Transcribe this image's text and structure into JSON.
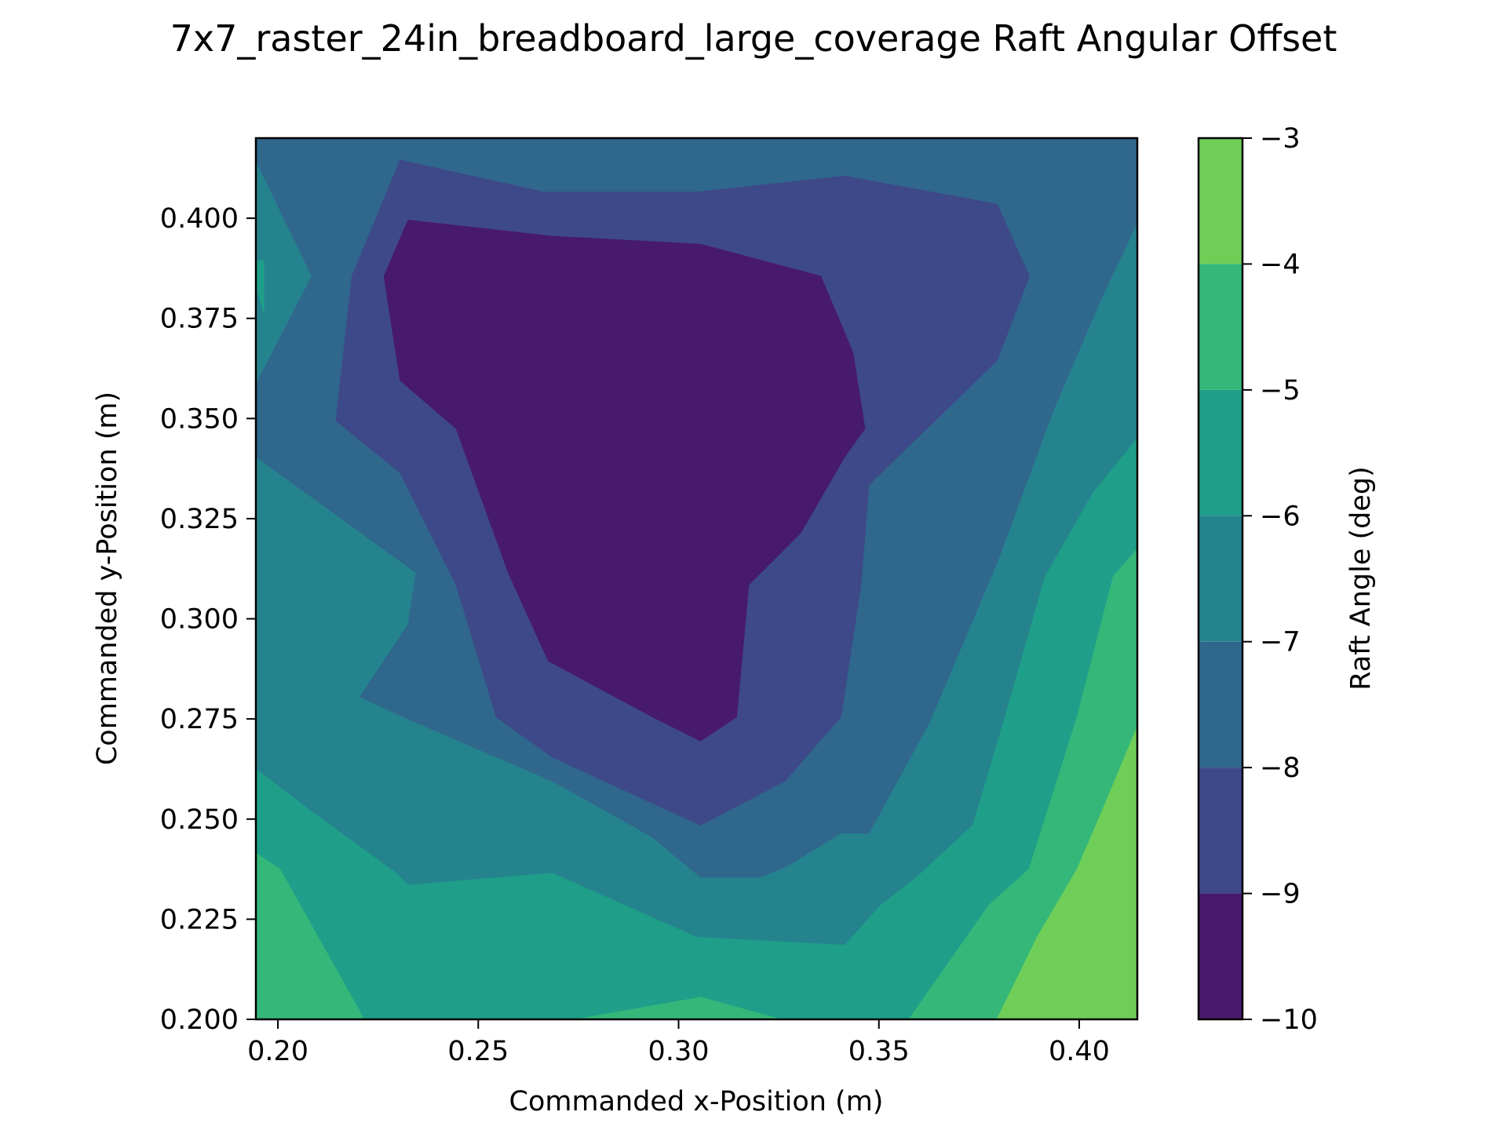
{
  "chart_data": {
    "type": "contourf",
    "title": "7x7_raster_24in_breadboard_large_coverage Raft Angular Offset",
    "xlabel": "Commanded x-Position (m)",
    "ylabel": "Commanded y-Position (m)",
    "colorbar_label": "Raft Angle (deg)",
    "xlim": [
      0.1945,
      0.4145
    ],
    "ylim": [
      0.2,
      0.42
    ],
    "xticks": [
      "0.20",
      "0.25",
      "0.30",
      "0.35",
      "0.40"
    ],
    "yticks": [
      "0.200",
      "0.225",
      "0.250",
      "0.275",
      "0.300",
      "0.325",
      "0.350",
      "0.375",
      "0.400"
    ],
    "colorbar_ticks": [
      "−10",
      "−9",
      "−8",
      "−7",
      "−6",
      "−5",
      "−4",
      "−3"
    ],
    "levels": [
      -10,
      -9,
      -8,
      -7,
      -6,
      -5,
      -4,
      -3
    ],
    "colors": [
      "#481a6c",
      "#3e4989",
      "#30678d",
      "#25838e",
      "#1f9e89",
      "#35b779",
      "#6ece58",
      "#d2e21b"
    ],
    "grid": false,
    "regions": [
      {
        "level_range": [
          -7,
          -6
        ],
        "points": [
          [
            0.1945,
            0.2
          ],
          [
            0.4145,
            0.2
          ],
          [
            0.4145,
            0.42
          ],
          [
            0.1945,
            0.42
          ]
        ]
      },
      {
        "level_range": [
          -8,
          -7
        ],
        "points": [
          [
            0.1945,
            0.42
          ],
          [
            0.4145,
            0.42
          ],
          [
            0.4145,
            0.399
          ],
          [
            0.4055,
            0.38
          ],
          [
            0.3935,
            0.352
          ],
          [
            0.3795,
            0.314
          ],
          [
            0.3625,
            0.274
          ],
          [
            0.3475,
            0.2465
          ],
          [
            0.3405,
            0.2465
          ],
          [
            0.3275,
            0.2385
          ],
          [
            0.3205,
            0.2355
          ],
          [
            0.3055,
            0.2355
          ],
          [
            0.2935,
            0.2455
          ],
          [
            0.2685,
            0.2595
          ],
          [
            0.2325,
            0.275
          ],
          [
            0.2205,
            0.2805
          ],
          [
            0.2325,
            0.2985
          ],
          [
            0.2345,
            0.3115
          ],
          [
            0.1945,
            0.3405
          ],
          [
            0.1945,
            0.3585
          ],
          [
            0.2085,
            0.3855
          ],
          [
            0.1945,
            0.4145
          ]
        ]
      },
      {
        "level_range": [
          -9,
          -8
        ],
        "points": [
          [
            0.2185,
            0.3855
          ],
          [
            0.2305,
            0.4145
          ],
          [
            0.2665,
            0.4065
          ],
          [
            0.3045,
            0.4065
          ],
          [
            0.3415,
            0.4105
          ],
          [
            0.3795,
            0.4035
          ],
          [
            0.3875,
            0.3855
          ],
          [
            0.3795,
            0.3645
          ],
          [
            0.3475,
            0.3335
          ],
          [
            0.3455,
            0.3085
          ],
          [
            0.3405,
            0.2755
          ],
          [
            0.3265,
            0.2595
          ],
          [
            0.3055,
            0.2485
          ],
          [
            0.2945,
            0.2535
          ],
          [
            0.2685,
            0.2655
          ],
          [
            0.2545,
            0.2755
          ],
          [
            0.2445,
            0.3085
          ],
          [
            0.2305,
            0.3365
          ],
          [
            0.2145,
            0.3495
          ]
        ]
      },
      {
        "level_range": [
          -10,
          -9
        ],
        "points": [
          [
            0.2265,
            0.3855
          ],
          [
            0.2325,
            0.3995
          ],
          [
            0.2685,
            0.3955
          ],
          [
            0.3055,
            0.3935
          ],
          [
            0.3355,
            0.3855
          ],
          [
            0.3435,
            0.3665
          ],
          [
            0.3465,
            0.3475
          ],
          [
            0.3415,
            0.3405
          ],
          [
            0.3305,
            0.3215
          ],
          [
            0.3175,
            0.3085
          ],
          [
            0.3145,
            0.2755
          ],
          [
            0.3055,
            0.2695
          ],
          [
            0.2935,
            0.2755
          ],
          [
            0.2675,
            0.2895
          ],
          [
            0.2575,
            0.3115
          ],
          [
            0.2445,
            0.3475
          ],
          [
            0.2305,
            0.3595
          ]
        ]
      },
      {
        "level_range": [
          -6,
          -5
        ],
        "points": [
          [
            0.1945,
            0.2
          ],
          [
            0.4145,
            0.2
          ],
          [
            0.4145,
            0.345
          ],
          [
            0.4035,
            0.3315
          ],
          [
            0.3915,
            0.3105
          ],
          [
            0.3815,
            0.2755
          ],
          [
            0.3735,
            0.2485
          ],
          [
            0.3595,
            0.2355
          ],
          [
            0.3505,
            0.2285
          ],
          [
            0.3415,
            0.2185
          ],
          [
            0.3045,
            0.2205
          ],
          [
            0.2685,
            0.2365
          ],
          [
            0.2325,
            0.2335
          ],
          [
            0.2295,
            0.2365
          ],
          [
            0.2075,
            0.2525
          ],
          [
            0.1945,
            0.2625
          ]
        ]
      },
      {
        "level_range": [
          -5,
          -4
        ],
        "points": [
          [
            0.2215,
            0.2
          ],
          [
            0.3035,
            0.2
          ],
          [
            0.4145,
            0.2
          ],
          [
            0.4145,
            0.3175
          ],
          [
            0.4085,
            0.3105
          ],
          [
            0.3995,
            0.2755
          ],
          [
            0.3875,
            0.2375
          ],
          [
            0.3775,
            0.2285
          ],
          [
            0.3575,
            0.2
          ],
          [
            0.3255,
            0.2
          ],
          [
            0.3055,
            0.2055
          ],
          [
            0.2745,
            0.2
          ],
          [
            0.2215,
            0.2
          ],
          [
            0.2005,
            0.2375
          ],
          [
            0.1945,
            0.2415
          ],
          [
            0.1945,
            0.2
          ]
        ]
      },
      {
        "level_range": [
          -4,
          -3
        ],
        "points": [
          [
            0.3795,
            0.2
          ],
          [
            0.4145,
            0.2
          ],
          [
            0.4145,
            0.273
          ],
          [
            0.4055,
            0.2515
          ],
          [
            0.3995,
            0.2375
          ],
          [
            0.3895,
            0.2205
          ]
        ]
      },
      {
        "level_range": [
          -6,
          -5
        ],
        "points": [
          [
            0.1945,
            0.383
          ],
          [
            0.1965,
            0.3765
          ],
          [
            0.1965,
            0.3895
          ],
          [
            0.1945,
            0.3895
          ]
        ]
      }
    ]
  }
}
